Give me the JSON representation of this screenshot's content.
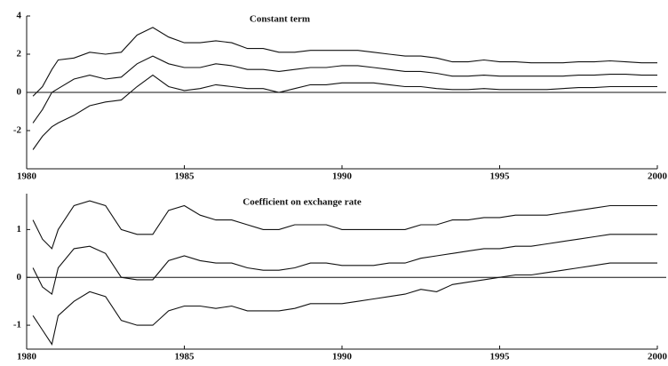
{
  "chart_data": [
    {
      "type": "line",
      "title": "Constant term",
      "x": [
        1980.2,
        1980.5,
        1980.8,
        1981,
        1981.5,
        1982,
        1982.5,
        1983,
        1983.5,
        1984,
        1984.5,
        1985,
        1985.5,
        1986,
        1986.5,
        1987,
        1987.5,
        1988,
        1988.5,
        1989,
        1989.5,
        1990,
        1990.5,
        1991,
        1991.5,
        1992,
        1992.5,
        1993,
        1993.5,
        1994,
        1994.5,
        1995,
        1995.5,
        1996,
        1996.5,
        1997,
        1997.5,
        1998,
        1998.5,
        1999,
        1999.5,
        2000
      ],
      "series": [
        {
          "color": "#111111",
          "values": [
            -0.2,
            0.3,
            1.2,
            1.7,
            1.8,
            2.1,
            2.0,
            2.1,
            3.0,
            3.4,
            2.9,
            2.6,
            2.6,
            2.7,
            2.6,
            2.3,
            2.3,
            2.1,
            2.1,
            2.2,
            2.2,
            2.2,
            2.2,
            2.1,
            2.0,
            1.9,
            1.9,
            1.8,
            1.6,
            1.6,
            1.7,
            1.6,
            1.6,
            1.55,
            1.55,
            1.55,
            1.6,
            1.6,
            1.65,
            1.6,
            1.55,
            1.55
          ]
        },
        {
          "color": "#111111",
          "values": [
            -1.6,
            -0.9,
            0,
            0.2,
            0.7,
            0.9,
            0.7,
            0.8,
            1.5,
            1.9,
            1.5,
            1.3,
            1.3,
            1.5,
            1.4,
            1.2,
            1.2,
            1.1,
            1.2,
            1.3,
            1.3,
            1.4,
            1.4,
            1.3,
            1.2,
            1.1,
            1.1,
            1.0,
            0.85,
            0.85,
            0.9,
            0.85,
            0.85,
            0.85,
            0.85,
            0.85,
            0.9,
            0.9,
            0.95,
            0.95,
            0.9,
            0.9
          ]
        },
        {
          "color": "#111111",
          "values": [
            -3.0,
            -2.3,
            -1.8,
            -1.6,
            -1.2,
            -0.7,
            -0.5,
            -0.4,
            0.3,
            0.9,
            0.3,
            0.1,
            0.2,
            0.4,
            0.3,
            0.2,
            0.2,
            0.0,
            0.2,
            0.4,
            0.4,
            0.5,
            0.5,
            0.5,
            0.4,
            0.3,
            0.3,
            0.2,
            0.15,
            0.15,
            0.2,
            0.15,
            0.15,
            0.15,
            0.15,
            0.2,
            0.25,
            0.25,
            0.3,
            0.3,
            0.3,
            0.3
          ]
        }
      ],
      "xlim": [
        1980,
        2000
      ],
      "xticks": [
        1980,
        1985,
        1990,
        1995,
        2000
      ],
      "ylim": [
        -4,
        4
      ],
      "yticks": [
        -2,
        0,
        2,
        4
      ]
    },
    {
      "type": "line",
      "title": "Coefficient on exchange rate",
      "x": [
        1980.2,
        1980.5,
        1980.8,
        1981,
        1981.5,
        1982,
        1982.5,
        1983,
        1983.5,
        1984,
        1984.5,
        1985,
        1985.5,
        1986,
        1986.5,
        1987,
        1987.5,
        1988,
        1988.5,
        1989,
        1989.5,
        1990,
        1990.5,
        1991,
        1991.5,
        1992,
        1992.5,
        1993,
        1993.5,
        1994,
        1994.5,
        1995,
        1995.5,
        1996,
        1996.5,
        1997,
        1997.5,
        1998,
        1998.5,
        1999,
        1999.5,
        2000
      ],
      "series": [
        {
          "color": "#111111",
          "values": [
            1.2,
            0.8,
            0.6,
            1.0,
            1.5,
            1.6,
            1.5,
            1.0,
            0.9,
            0.9,
            1.4,
            1.5,
            1.3,
            1.2,
            1.2,
            1.1,
            1.0,
            1.0,
            1.1,
            1.1,
            1.1,
            1.0,
            1.0,
            1.0,
            1.0,
            1.0,
            1.1,
            1.1,
            1.2,
            1.2,
            1.25,
            1.25,
            1.3,
            1.3,
            1.3,
            1.35,
            1.4,
            1.45,
            1.5,
            1.5,
            1.5,
            1.5
          ]
        },
        {
          "color": "#111111",
          "values": [
            0.2,
            -0.2,
            -0.35,
            0.2,
            0.6,
            0.65,
            0.5,
            0.0,
            -0.05,
            -0.05,
            0.35,
            0.45,
            0.35,
            0.3,
            0.3,
            0.2,
            0.15,
            0.15,
            0.2,
            0.3,
            0.3,
            0.25,
            0.25,
            0.25,
            0.3,
            0.3,
            0.4,
            0.45,
            0.5,
            0.55,
            0.6,
            0.6,
            0.65,
            0.65,
            0.7,
            0.75,
            0.8,
            0.85,
            0.9,
            0.9,
            0.9,
            0.9
          ]
        },
        {
          "color": "#111111",
          "values": [
            -0.8,
            -1.1,
            -1.4,
            -0.8,
            -0.5,
            -0.3,
            -0.4,
            -0.9,
            -1.0,
            -1.0,
            -0.7,
            -0.6,
            -0.6,
            -0.65,
            -0.6,
            -0.7,
            -0.7,
            -0.7,
            -0.65,
            -0.55,
            -0.55,
            -0.55,
            -0.5,
            -0.45,
            -0.4,
            -0.35,
            -0.25,
            -0.3,
            -0.15,
            -0.1,
            -0.05,
            0.0,
            0.05,
            0.05,
            0.1,
            0.15,
            0.2,
            0.25,
            0.3,
            0.3,
            0.3,
            0.3
          ]
        }
      ],
      "xlim": [
        1980,
        2000
      ],
      "xticks": [
        1980,
        1985,
        1990,
        1995,
        2000
      ],
      "ylim": [
        -1.5,
        1.75
      ],
      "yticks": [
        -1,
        0,
        1
      ]
    }
  ]
}
